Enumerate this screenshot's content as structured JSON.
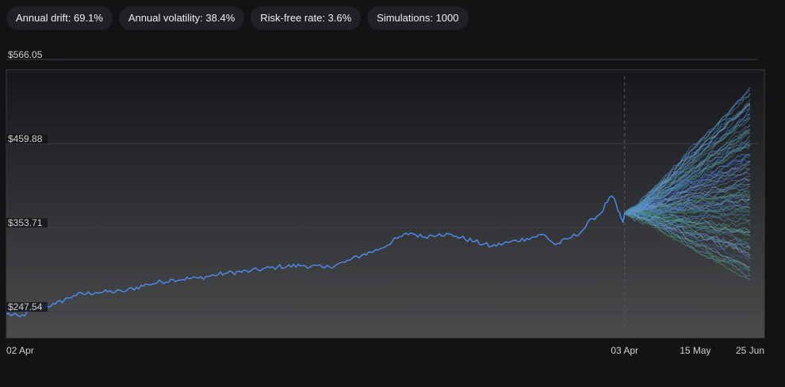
{
  "stats": [
    {
      "label": "Annual drift: 69.1%"
    },
    {
      "label": "Annual volatility: 38.4%"
    },
    {
      "label": "Risk-free rate: 3.6%"
    },
    {
      "label": "Simulations: 1000"
    }
  ],
  "chart_data": {
    "type": "line",
    "title": "",
    "xlabel": "",
    "ylabel": "",
    "grid": true,
    "legend": "none",
    "ylim": [
      220,
      588
    ],
    "y_ticks": [
      247.54,
      353.71,
      459.88,
      566.05
    ],
    "y_tick_labels": [
      "$247.54",
      "$353.71",
      "$459.88",
      "$566.05"
    ],
    "x_start": "2023-04-02",
    "x_split": "2024-04-03",
    "x_end": "2024-06-25",
    "x_tick_labels": [
      {
        "date": "2023-04-02",
        "label": "02 Apr"
      },
      {
        "date": "2024-04-03",
        "label": "03 Apr"
      },
      {
        "date": "2024-05-15",
        "label": "15 May"
      },
      {
        "date": "2024-06-25",
        "label": "25 Jun"
      }
    ],
    "history_series": {
      "name": "",
      "color": "#4f8df5",
      "points": [
        [
          "2023-04-02",
          245
        ],
        [
          "2023-04-10",
          241
        ],
        [
          "2023-04-20",
          252
        ],
        [
          "2023-05-01",
          257
        ],
        [
          "2023-05-12",
          268
        ],
        [
          "2023-05-25",
          272
        ],
        [
          "2023-06-10",
          273
        ],
        [
          "2023-06-25",
          282
        ],
        [
          "2023-07-10",
          288
        ],
        [
          "2023-07-25",
          290
        ],
        [
          "2023-08-10",
          296
        ],
        [
          "2023-08-25",
          299
        ],
        [
          "2023-09-10",
          304
        ],
        [
          "2023-09-25",
          306
        ],
        [
          "2023-10-08",
          303
        ],
        [
          "2023-10-20",
          310
        ],
        [
          "2023-10-30",
          319
        ],
        [
          "2023-11-10",
          327
        ],
        [
          "2023-11-20",
          340
        ],
        [
          "2023-11-28",
          347
        ],
        [
          "2023-12-05",
          342
        ],
        [
          "2023-12-15",
          346
        ],
        [
          "2023-12-25",
          343
        ],
        [
          "2024-01-05",
          336
        ],
        [
          "2024-01-15",
          330
        ],
        [
          "2024-01-25",
          335
        ],
        [
          "2024-02-05",
          340
        ],
        [
          "2024-02-15",
          345
        ],
        [
          "2024-02-22",
          332
        ],
        [
          "2024-03-01",
          340
        ],
        [
          "2024-03-08",
          348
        ],
        [
          "2024-03-15",
          365
        ],
        [
          "2024-03-20",
          372
        ],
        [
          "2024-03-25",
          392
        ],
        [
          "2024-03-28",
          390
        ],
        [
          "2024-03-30",
          375
        ],
        [
          "2024-04-01",
          365
        ],
        [
          "2024-04-02",
          360
        ],
        [
          "2024-04-03",
          372
        ]
      ]
    },
    "simulations_shown": 1000,
    "simulation_colors": [
      "#4f7fd9",
      "#5b8fe6",
      "#3d6fc4",
      "#6a9ae0",
      "#4c8f78",
      "#5aa08a",
      "#3f7d6a",
      "#7fb0d8",
      "#5c86c9",
      "#48a0a8"
    ],
    "simulation_end_range": [
      280,
      535
    ]
  }
}
